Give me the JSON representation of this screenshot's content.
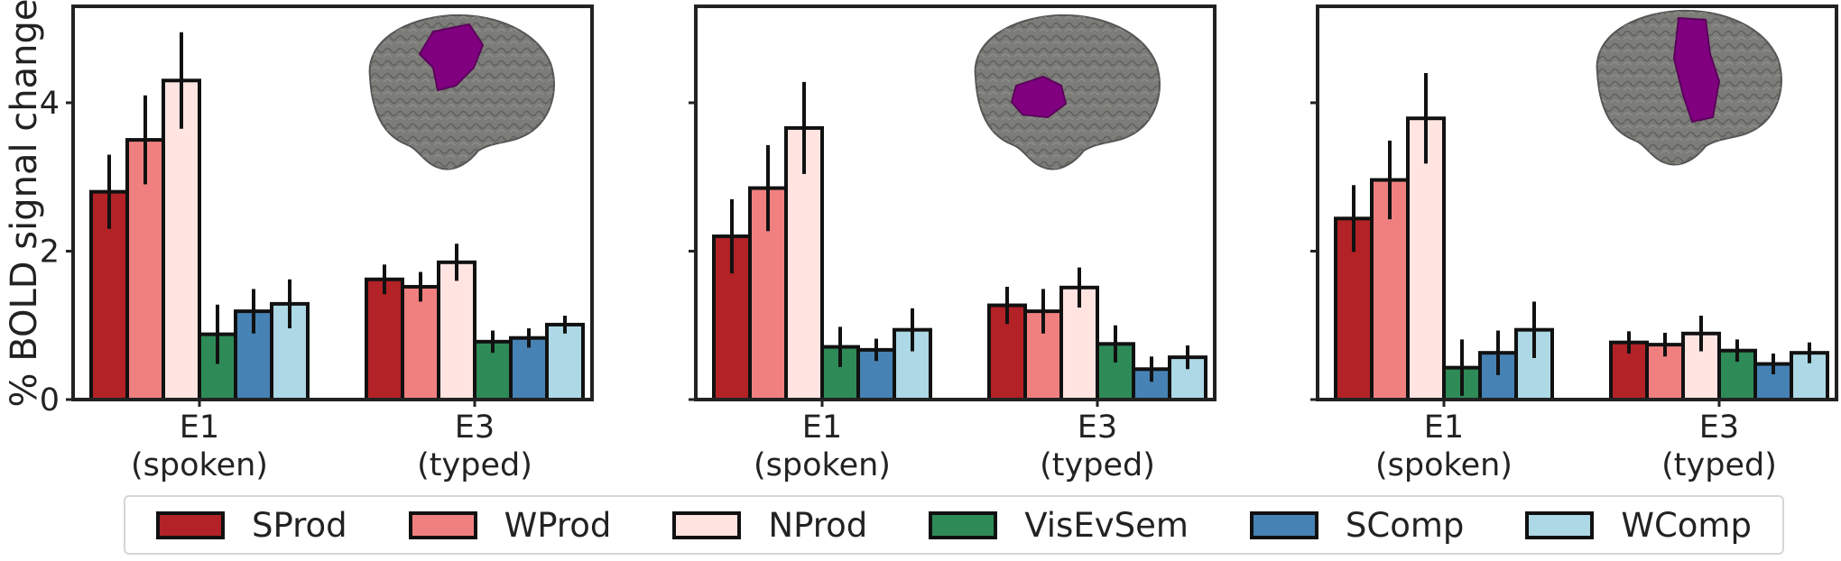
{
  "chart_data": [
    {
      "type": "bar",
      "ylabel": "% BOLD signal change",
      "ylim": [
        0,
        5.3
      ],
      "yticks": [
        0,
        2,
        4
      ],
      "categories": [
        "E1\n(spoken)",
        "E3\n(typed)"
      ],
      "series": [
        {
          "name": "SProd",
          "values": [
            2.8,
            1.62
          ],
          "err": [
            0.5,
            0.2
          ]
        },
        {
          "name": "WProd",
          "values": [
            3.5,
            1.52
          ],
          "err": [
            0.6,
            0.2
          ]
        },
        {
          "name": "NProd",
          "values": [
            4.3,
            1.85
          ],
          "err": [
            0.65,
            0.25
          ]
        },
        {
          "name": "VisEvSem",
          "values": [
            0.88,
            0.78
          ],
          "err": [
            0.4,
            0.15
          ]
        },
        {
          "name": "SComp",
          "values": [
            1.19,
            0.83
          ],
          "err": [
            0.3,
            0.13
          ]
        },
        {
          "name": "WComp",
          "values": [
            1.29,
            1.01
          ],
          "err": [
            0.33,
            0.12
          ]
        }
      ]
    },
    {
      "type": "bar",
      "ylim": [
        0,
        5.3
      ],
      "yticks": [
        0,
        2,
        4
      ],
      "categories": [
        "E1\n(spoken)",
        "E3\n(typed)"
      ],
      "series": [
        {
          "name": "SProd",
          "values": [
            2.2,
            1.27
          ],
          "err": [
            0.5,
            0.25
          ]
        },
        {
          "name": "WProd",
          "values": [
            2.85,
            1.19
          ],
          "err": [
            0.58,
            0.3
          ]
        },
        {
          "name": "NProd",
          "values": [
            3.66,
            1.51
          ],
          "err": [
            0.62,
            0.27
          ]
        },
        {
          "name": "VisEvSem",
          "values": [
            0.71,
            0.75
          ],
          "err": [
            0.27,
            0.25
          ]
        },
        {
          "name": "SComp",
          "values": [
            0.67,
            0.41
          ],
          "err": [
            0.15,
            0.17
          ]
        },
        {
          "name": "WComp",
          "values": [
            0.94,
            0.57
          ],
          "err": [
            0.29,
            0.16
          ]
        }
      ]
    },
    {
      "type": "bar",
      "ylim": [
        0,
        5.3
      ],
      "yticks": [
        0,
        2,
        4
      ],
      "categories": [
        "E1\n(spoken)",
        "E3\n(typed)"
      ],
      "series": [
        {
          "name": "SProd",
          "values": [
            2.44,
            0.77
          ],
          "err": [
            0.45,
            0.15
          ]
        },
        {
          "name": "WProd",
          "values": [
            2.96,
            0.74
          ],
          "err": [
            0.53,
            0.16
          ]
        },
        {
          "name": "NProd",
          "values": [
            3.79,
            0.89
          ],
          "err": [
            0.61,
            0.24
          ]
        },
        {
          "name": "VisEvSem",
          "values": [
            0.43,
            0.66
          ],
          "err": [
            0.38,
            0.15
          ]
        },
        {
          "name": "SComp",
          "values": [
            0.63,
            0.48
          ],
          "err": [
            0.3,
            0.14
          ]
        },
        {
          "name": "WComp",
          "values": [
            0.94,
            0.63
          ],
          "err": [
            0.38,
            0.14
          ]
        }
      ]
    }
  ],
  "colors": {
    "SProd": "#b22226",
    "WProd": "#f08080",
    "NProd": "#ffe4e1",
    "VisEvSem": "#2e8b57",
    "SComp": "#4682b4",
    "WComp": "#add8e6",
    "brain": "#7c7c78",
    "roi": "#800080"
  },
  "legend": {
    "placement": "bottom",
    "items": [
      "SProd",
      "WProd",
      "NProd",
      "VisEvSem",
      "SComp",
      "WComp"
    ]
  },
  "brain_images": [
    {
      "icon": "brain-lateral-icon",
      "roi": "superior-frontal-posterior"
    },
    {
      "icon": "brain-lateral-icon",
      "roi": "inferior-frontal"
    },
    {
      "icon": "brain-lateral-icon",
      "roi": "precentral"
    }
  ]
}
